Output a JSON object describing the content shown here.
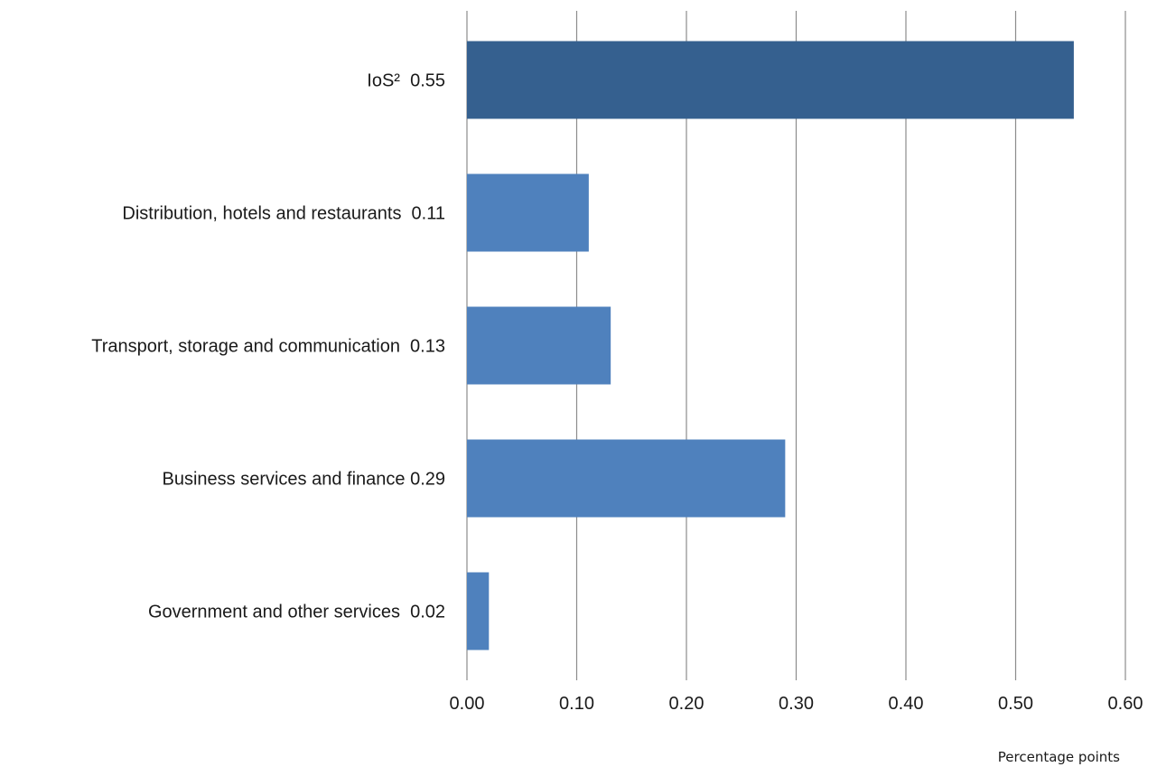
{
  "chart_data": {
    "type": "bar",
    "orientation": "horizontal",
    "categories": [
      "IoS²  0.55",
      "Distribution, hotels and restaurants  0.11",
      "Transport, storage and communication  0.13",
      "Business services and finance 0.29",
      "Government and other services  0.02"
    ],
    "values": [
      0.553,
      0.111,
      0.131,
      0.29,
      0.02
    ],
    "bar_colors": [
      "#35608f",
      "#4f81bd",
      "#4f81bd",
      "#4f81bd",
      "#4f81bd"
    ],
    "xlim": [
      0,
      0.6
    ],
    "xticks": [
      "0.00",
      "0.10",
      "0.20",
      "0.30",
      "0.40",
      "0.50",
      "0.60"
    ],
    "xlabel": "Percentage points",
    "grid": "vertical",
    "legend": "none"
  }
}
